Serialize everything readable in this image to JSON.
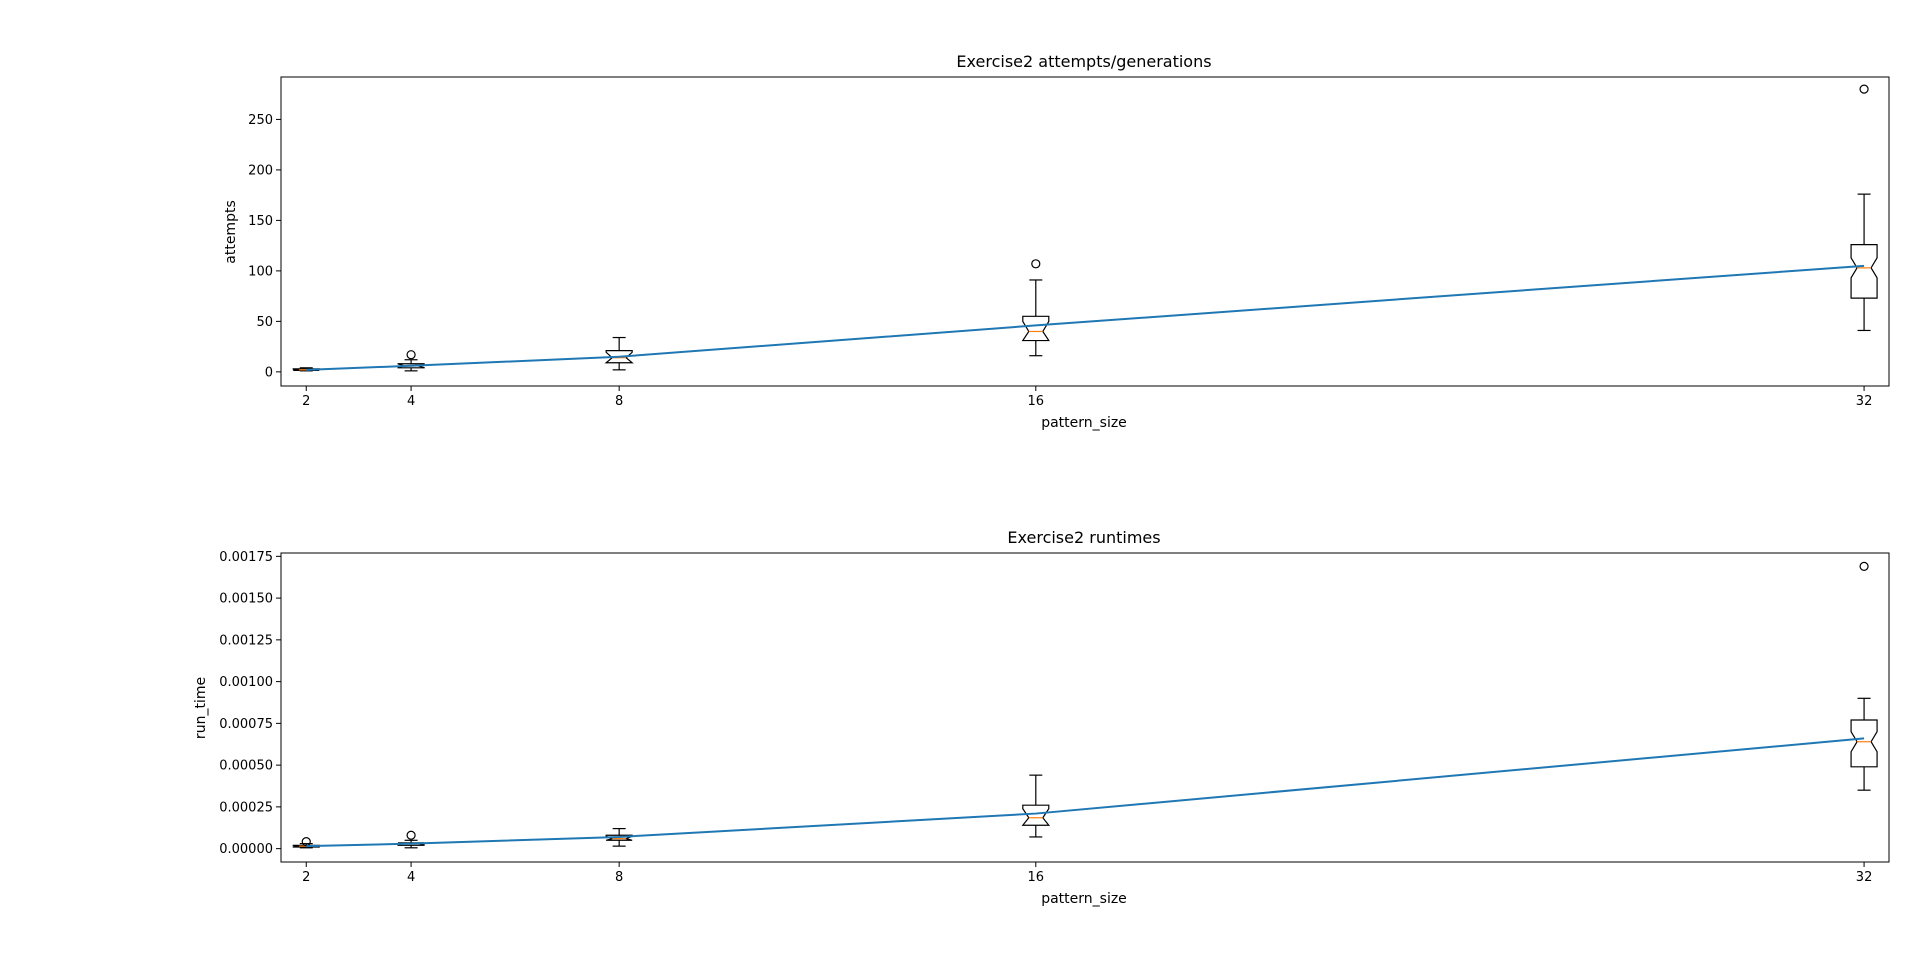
{
  "chart_data": [
    {
      "type": "box",
      "title": "Exercise2 attempts/generations",
      "xlabel": "pattern_size",
      "ylabel": "attempts",
      "x_ticks": [
        "2",
        "4",
        "8",
        "16",
        "32"
      ],
      "y_ticks": [
        "0",
        "50",
        "100",
        "150",
        "200",
        "250"
      ],
      "xlim": [
        1.5,
        32.5
      ],
      "ylim": [
        -14,
        292
      ],
      "notched": true,
      "boxes": [
        {
          "x": 2,
          "whisker_low": 1,
          "q1": 1.5,
          "median": 2,
          "q3": 3,
          "whisker_high": 4,
          "outliers": []
        },
        {
          "x": 4,
          "whisker_low": 1,
          "q1": 4,
          "median": 6,
          "q3": 8,
          "whisker_high": 12,
          "outliers": [
            17
          ]
        },
        {
          "x": 8,
          "whisker_low": 2,
          "q1": 9,
          "median": 14,
          "q3": 21,
          "whisker_high": 34,
          "outliers": []
        },
        {
          "x": 16,
          "whisker_low": 16,
          "q1": 31,
          "median": 40,
          "q3": 55,
          "whisker_high": 91,
          "outliers": [
            107
          ]
        },
        {
          "x": 32,
          "whisker_low": 41,
          "q1": 73,
          "median": 103,
          "q3": 126,
          "whisker_high": 176,
          "outliers": [
            280
          ]
        }
      ],
      "trend_line": {
        "x": [
          2,
          4,
          8,
          16,
          32
        ],
        "y": [
          2,
          6,
          15,
          46,
          105
        ],
        "color": "#1f77b4"
      }
    },
    {
      "type": "box",
      "title": "Exercise2 runtimes",
      "xlabel": "pattern_size",
      "ylabel": "run_time",
      "x_ticks": [
        "2",
        "4",
        "8",
        "16",
        "32"
      ],
      "y_ticks": [
        "0.00000",
        "0.00025",
        "0.00050",
        "0.00075",
        "0.00100",
        "0.00125",
        "0.00150",
        "0.00175"
      ],
      "xlim": [
        1.5,
        32.5
      ],
      "ylim": [
        -8e-05,
        0.00177
      ],
      "notched": true,
      "boxes": [
        {
          "x": 2,
          "whisker_low": 5e-06,
          "q1": 1e-05,
          "median": 1.5e-05,
          "q3": 2e-05,
          "whisker_high": 3e-05,
          "outliers": [
            4.2e-05
          ]
        },
        {
          "x": 4,
          "whisker_low": 5e-06,
          "q1": 2e-05,
          "median": 3e-05,
          "q3": 3.5e-05,
          "whisker_high": 5e-05,
          "outliers": [
            8e-05
          ]
        },
        {
          "x": 8,
          "whisker_low": 1.5e-05,
          "q1": 5e-05,
          "median": 6e-05,
          "q3": 8e-05,
          "whisker_high": 0.00012,
          "outliers": []
        },
        {
          "x": 16,
          "whisker_low": 7e-05,
          "q1": 0.00014,
          "median": 0.000185,
          "q3": 0.00026,
          "whisker_high": 0.00044,
          "outliers": []
        },
        {
          "x": 32,
          "whisker_low": 0.00035,
          "q1": 0.00049,
          "median": 0.00064,
          "q3": 0.00077,
          "whisker_high": 0.0009,
          "outliers": [
            0.00169
          ]
        }
      ],
      "trend_line": {
        "x": [
          2,
          4,
          8,
          16,
          32
        ],
        "y": [
          1.5e-05,
          3e-05,
          7e-05,
          0.00021,
          0.00066
        ],
        "color": "#1f77b4"
      }
    }
  ],
  "colors": {
    "line": "#1f77b4",
    "median": "#ff7f0e",
    "box": "#000000"
  }
}
